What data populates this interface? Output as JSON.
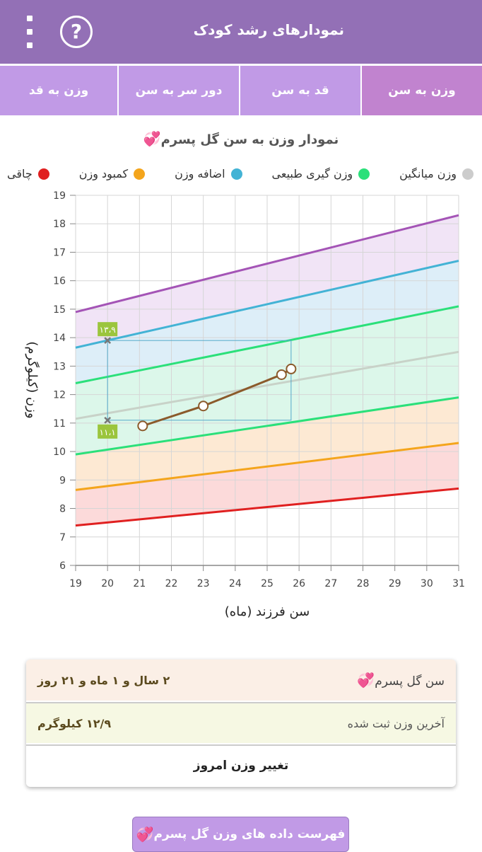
{
  "appbar": {
    "title": "نمودارهای رشد کودک",
    "menu_icon": "more-vert-icon",
    "help_icon": "help-circle-icon",
    "help_glyph": "?"
  },
  "tabs": [
    {
      "label": "وزن به سن",
      "active": true
    },
    {
      "label": "قد به سن",
      "active": false
    },
    {
      "label": "دور سر به سن",
      "active": false
    },
    {
      "label": "وزن به قد",
      "active": false
    }
  ],
  "chart_title": "نمودار وزن به سن گل پسرم",
  "heart_icon": "two-hearts-icon",
  "heart_glyph": "💞",
  "legend": [
    {
      "label": "چاقی",
      "color": "#e02020"
    },
    {
      "label": "کمبود وزن",
      "color": "#f4a51c"
    },
    {
      "label": "اضافه وزن",
      "color": "#43b3d5"
    },
    {
      "label": "وزن گیری طبیعی",
      "color": "#2be07a"
    },
    {
      "label": "وزن میانگین",
      "color": "#cccccc"
    }
  ],
  "chart_data": {
    "type": "line",
    "title": "نمودار وزن به سن گل پسرم",
    "xlabel": "سن فرزند (ماه)",
    "ylabel": "وزن (کیلوگرم)",
    "xlim": [
      19,
      31
    ],
    "ylim": [
      6,
      19
    ],
    "x_ticks": [
      19,
      20,
      21,
      22,
      23,
      24,
      25,
      26,
      27,
      28,
      29,
      30,
      31
    ],
    "y_ticks": [
      6,
      7,
      8,
      9,
      10,
      11,
      12,
      13,
      14,
      15,
      16,
      17,
      18,
      19
    ],
    "grid": true,
    "reference_lines": [
      {
        "name": "چاقی",
        "color": "#a454b6",
        "x": [
          19,
          31
        ],
        "y": [
          14.9,
          18.3
        ]
      },
      {
        "name": "اضافه وزن",
        "color": "#43b3d5",
        "x": [
          19,
          31
        ],
        "y": [
          13.65,
          16.7
        ]
      },
      {
        "name": "وزن گیری طبیعی",
        "color": "#2be07a",
        "x": [
          19,
          31
        ],
        "y": [
          12.4,
          15.1
        ]
      },
      {
        "name": "وزن میانگین",
        "color": "#c8d2c8",
        "x": [
          19,
          31
        ],
        "y": [
          11.15,
          13.5
        ]
      },
      {
        "name": "وزن گیری طبیعی",
        "color": "#2be07a",
        "x": [
          19,
          31
        ],
        "y": [
          9.9,
          11.9
        ]
      },
      {
        "name": "کمبود وزن",
        "color": "#f4a51c",
        "x": [
          19,
          31
        ],
        "y": [
          8.65,
          10.3
        ]
      },
      {
        "name": "چاقی",
        "color": "#e02020",
        "x": [
          19,
          31
        ],
        "y": [
          7.4,
          8.7
        ]
      }
    ],
    "bands": [
      {
        "fill": "#f1e4f6",
        "between": [
          0,
          1
        ]
      },
      {
        "fill": "#ddeef8",
        "between": [
          1,
          2
        ]
      },
      {
        "fill": "#dcf7ea",
        "between": [
          2,
          4
        ]
      },
      {
        "fill": "#fde9d3",
        "between": [
          4,
          5
        ]
      },
      {
        "fill": "#fcdada",
        "between": [
          5,
          6
        ]
      }
    ],
    "series": [
      {
        "color": "#8b5a2b",
        "x": [
          21.1,
          23.0,
          25.45,
          25.75
        ],
        "y": [
          10.9,
          11.6,
          12.7,
          12.9
        ]
      }
    ],
    "markers": [
      {
        "x": 20,
        "y": 13.9,
        "label": "۱۳،۹"
      },
      {
        "x": 20,
        "y": 11.1,
        "label": "۱۱،۱"
      }
    ],
    "range_box": {
      "x": [
        20,
        25.75
      ],
      "y": [
        11.1,
        13.9
      ]
    }
  },
  "info": {
    "age_label": "سن گل پسرم",
    "age_value": "۲ سال و ۱ ماه و ۲۱ روز",
    "weight_label": "آخرین وزن ثبت شده",
    "weight_value": "۱۲/۹ کیلوگرم",
    "change_button": "تغییر وزن امروز"
  },
  "list_button": "فهرست داده های وزن گل پسرم"
}
